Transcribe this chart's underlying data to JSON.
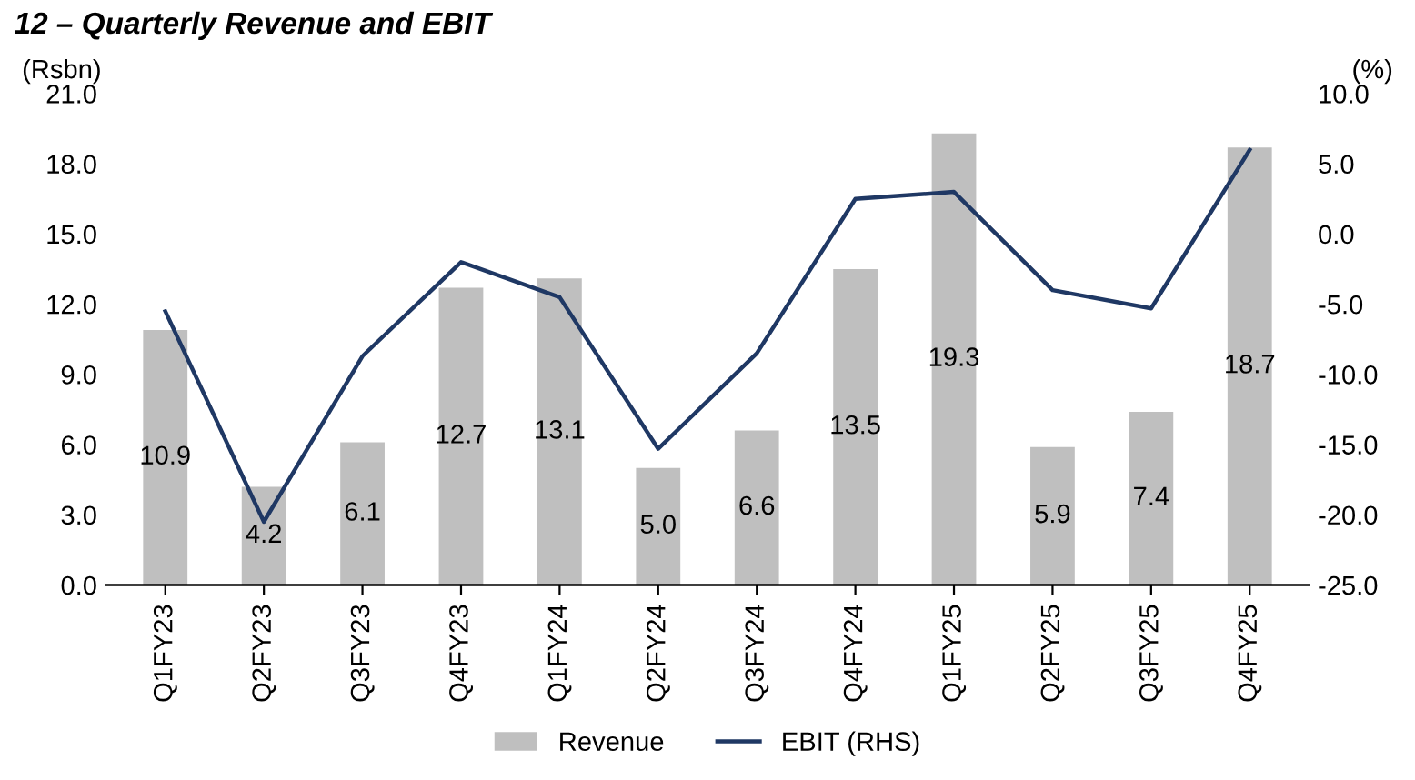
{
  "chart_data": {
    "type": "bar",
    "title": "12 – Quarterly Revenue and EBIT",
    "ylabel": "(Rsbn)",
    "y2label": "(%)",
    "categories": [
      "Q1FY23",
      "Q2FY23",
      "Q3FY23",
      "Q4FY23",
      "Q1FY24",
      "Q2FY24",
      "Q3FY24",
      "Q4FY24",
      "Q1FY25",
      "Q2FY25",
      "Q3FY25",
      "Q4FY25"
    ],
    "series": [
      {
        "name": "Revenue",
        "color": "#bfbfbf",
        "values": [
          10.9,
          4.2,
          6.1,
          12.7,
          13.1,
          5.0,
          6.6,
          13.5,
          19.3,
          5.9,
          7.4,
          18.7
        ],
        "value_labels": [
          "10.9",
          "4.2",
          "6.1",
          "12.7",
          "13.1",
          "5.0",
          "6.6",
          "13.5",
          "19.3",
          "5.9",
          "7.4",
          "18.7"
        ]
      },
      {
        "name": "EBIT (RHS)",
        "type": "line",
        "axis": "y2",
        "color": "#1f3864",
        "values": [
          -5.5,
          -20.5,
          -8.7,
          -2.0,
          -4.5,
          -15.3,
          -8.5,
          2.5,
          3.0,
          -4.0,
          -5.3,
          6.0
        ]
      }
    ],
    "ylim": [
      0,
      21
    ],
    "yticks": [
      {
        "value": 0,
        "label": "0.0"
      },
      {
        "value": 3,
        "label": "3.0"
      },
      {
        "value": 6,
        "label": "6.0"
      },
      {
        "value": 9,
        "label": "9.0"
      },
      {
        "value": 12,
        "label": "12.0"
      },
      {
        "value": 15,
        "label": "15.0"
      },
      {
        "value": 18,
        "label": "18.0"
      },
      {
        "value": 21,
        "label": "21.0"
      }
    ],
    "y2lim": [
      -25,
      10
    ],
    "y2ticks": [
      {
        "value": -25,
        "label": "-25.0"
      },
      {
        "value": -20,
        "label": "-20.0"
      },
      {
        "value": -15,
        "label": "-15.0"
      },
      {
        "value": -10,
        "label": "-10.0"
      },
      {
        "value": -5,
        "label": "-5.0"
      },
      {
        "value": 0,
        "label": "0.0"
      },
      {
        "value": 5,
        "label": "5.0"
      },
      {
        "value": 10,
        "label": "10.0"
      }
    ],
    "grid": false,
    "legend": "bottom",
    "line_style": "solid",
    "marker": "none"
  }
}
